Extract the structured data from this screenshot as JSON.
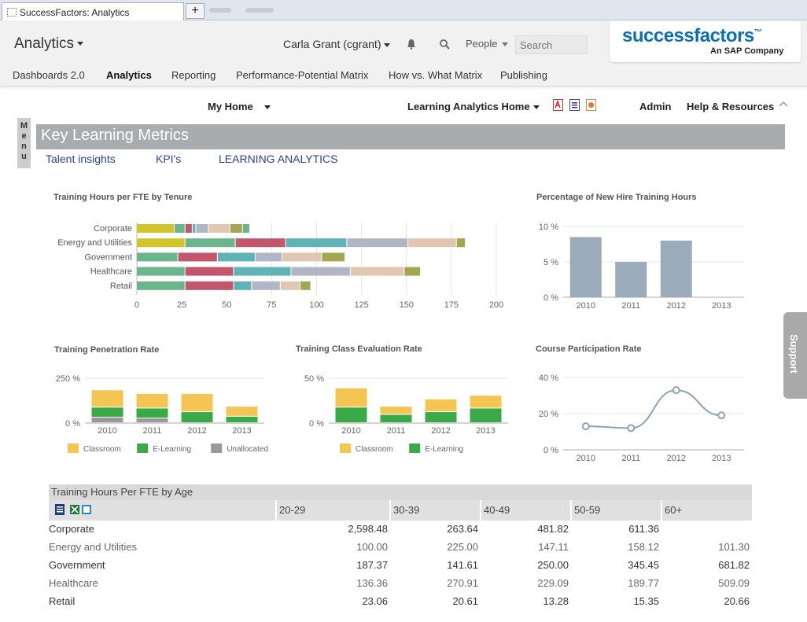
{
  "browser": {
    "tab_title": "SuccessFactors: Analytics",
    "new_tab_symbol": "+"
  },
  "header": {
    "app_title": "Analytics",
    "user": "Carla Grant (cgrant)",
    "people_label": "People",
    "search_placeholder": "Search",
    "logo_text": "successfactors",
    "logo_tm": "™",
    "logo_sub": "An SAP Company"
  },
  "nav": {
    "items": [
      "Dashboards 2.0",
      "Analytics",
      "Reporting",
      "Performance-Potential Matrix",
      "How vs. What Matrix",
      "Publishing"
    ],
    "active": "Analytics"
  },
  "subbar": {
    "my_home": "My Home",
    "learning_home": "Learning Analytics Home",
    "admin": "Admin",
    "help": "Help & Resources"
  },
  "menu_tab": "Menu",
  "page_title": "Key Learning Metrics",
  "subtabs": [
    "Talent insights",
    "KPI's",
    "LEARNING ANALYTICS"
  ],
  "support_label": "Support",
  "chart_data": [
    {
      "type": "bar",
      "orientation": "horizontal",
      "stacked": true,
      "title": "Training Hours per FTE by Tenure",
      "categories": [
        "Corporate",
        "Energy and Utilities",
        "Government",
        "Healthcare",
        "Retail"
      ],
      "xlim": [
        0,
        200
      ],
      "xticks": [
        0,
        25,
        50,
        75,
        100,
        125,
        150,
        175,
        200
      ],
      "series": [
        {
          "color": "#d4c42c",
          "values": [
            21,
            27,
            0,
            0,
            0
          ]
        },
        {
          "color": "#6bb58c",
          "values": [
            6,
            28,
            23,
            27,
            27
          ]
        },
        {
          "color": "#c2566c",
          "values": [
            4,
            28,
            22,
            27,
            27
          ]
        },
        {
          "color": "#5fb2b5",
          "values": [
            2,
            34,
            21,
            32,
            10
          ]
        },
        {
          "color": "#b2b6c4",
          "values": [
            7,
            34,
            15,
            33,
            16
          ]
        },
        {
          "color": "#e1c6b2",
          "values": [
            12,
            27,
            22,
            30,
            11
          ]
        },
        {
          "color": "#a2a850",
          "values": [
            7,
            5,
            13,
            9,
            6
          ]
        },
        {
          "color": "#6bb58c",
          "values": [
            4,
            0,
            0,
            0,
            0
          ]
        }
      ]
    },
    {
      "type": "bar",
      "title": "Percentage of New Hire Training Hours",
      "categories": [
        "2010",
        "2011",
        "2012",
        "2013"
      ],
      "values": [
        8.5,
        5.0,
        8.0,
        0
      ],
      "ylim": [
        0,
        10
      ],
      "yticks": [
        "0 %",
        "5 %",
        "10 %"
      ],
      "color": "#9aabb9"
    },
    {
      "type": "bar",
      "stacked": true,
      "title": "Training Penetration Rate",
      "categories": [
        "2010",
        "2011",
        "2012",
        "2013"
      ],
      "ylim": [
        0,
        250
      ],
      "yticks": [
        "0 %",
        "250 %"
      ],
      "series": [
        {
          "name": "Unallocated",
          "color": "#999999",
          "values": [
            30,
            25,
            0,
            0
          ]
        },
        {
          "name": "E-Learning",
          "color": "#3aaa49",
          "values": [
            55,
            55,
            60,
            35
          ]
        },
        {
          "name": "Classroom",
          "color": "#f4c553",
          "values": [
            95,
            80,
            100,
            55
          ]
        }
      ],
      "legend": [
        "Classroom",
        "E-Learning",
        "Unallocated"
      ]
    },
    {
      "type": "bar",
      "stacked": true,
      "title": "Training Class Evaluation Rate",
      "categories": [
        "2010",
        "2011",
        "2012",
        "2013"
      ],
      "ylim": [
        0,
        50
      ],
      "yticks": [
        "0 %",
        "50 %"
      ],
      "series": [
        {
          "name": "E-Learning",
          "color": "#3aaa49",
          "values": [
            17,
            9,
            12,
            16
          ]
        },
        {
          "name": "Classroom",
          "color": "#f4c553",
          "values": [
            21,
            9,
            14,
            14
          ]
        }
      ],
      "legend": [
        "Classroom",
        "E-Learning"
      ]
    },
    {
      "type": "line",
      "title": "Course Participation Rate",
      "categories": [
        "2010",
        "2011",
        "2012",
        "2013"
      ],
      "values": [
        13,
        12,
        33,
        19
      ],
      "ylim": [
        0,
        40
      ],
      "yticks": [
        "0 %",
        "20 %",
        "40 %"
      ],
      "color": "#8aa3b6"
    }
  ],
  "table": {
    "title": "Training Hours Per FTE by Age",
    "columns": [
      "20-29",
      "30-39",
      "40-49",
      "50-59",
      "60+"
    ],
    "rows": [
      {
        "label": "Corporate",
        "values": [
          "2,598.48",
          "263.64",
          "481.82",
          "611.36",
          ""
        ]
      },
      {
        "label": "Energy and Utilities",
        "values": [
          "100.00",
          "225.00",
          "147.11",
          "158.12",
          "101.30"
        ]
      },
      {
        "label": "Government",
        "values": [
          "187.37",
          "141.61",
          "250.00",
          "345.45",
          "681.82"
        ]
      },
      {
        "label": "Healthcare",
        "values": [
          "136.36",
          "270.91",
          "229.09",
          "189.77",
          "509.09"
        ]
      },
      {
        "label": "Retail",
        "values": [
          "23.06",
          "20.61",
          "13.28",
          "15.35",
          "20.66"
        ]
      }
    ]
  }
}
